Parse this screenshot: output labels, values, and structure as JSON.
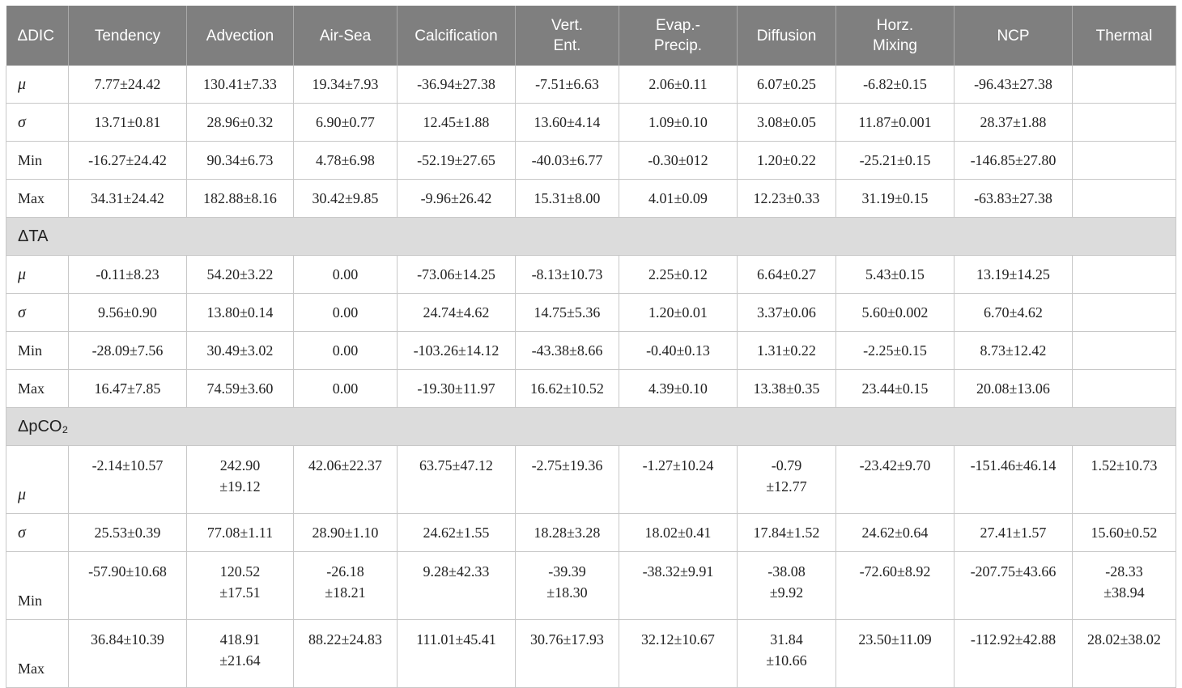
{
  "headers": [
    "ΔDIC",
    "Tendency",
    "Advection",
    "Air-Sea",
    "Calcification",
    "Vert.\nEnt.",
    "Evap.-\nPrecip.",
    "Diffusion",
    "Horz.\nMixing",
    "NCP",
    "Thermal"
  ],
  "sections": [
    {
      "rows": [
        {
          "label": "μ",
          "greek": true,
          "cells": [
            "7.77±24.42",
            "130.41±7.33",
            "19.34±7.93",
            "-36.94±27.38",
            "-7.51±6.63",
            "2.06±0.11",
            "6.07±0.25",
            "-6.82±0.15",
            "-96.43±27.38",
            ""
          ]
        },
        {
          "label": "σ",
          "greek": true,
          "cells": [
            "13.71±0.81",
            "28.96±0.32",
            "6.90±0.77",
            "12.45±1.88",
            "13.60±4.14",
            "1.09±0.10",
            "3.08±0.05",
            "11.87±0.001",
            "28.37±1.88",
            ""
          ]
        },
        {
          "label": "Min",
          "greek": false,
          "cells": [
            "-16.27±24.42",
            "90.34±6.73",
            "4.78±6.98",
            "-52.19±27.65",
            "-40.03±6.77",
            "-0.30±012",
            "1.20±0.22",
            "-25.21±0.15",
            "-146.85±27.80",
            ""
          ]
        },
        {
          "label": "Max",
          "greek": false,
          "cells": [
            "34.31±24.42",
            "182.88±8.16",
            "30.42±9.85",
            "-9.96±26.42",
            "15.31±8.00",
            "4.01±0.09",
            "12.23±0.33",
            "31.19±0.15",
            "-63.83±27.38",
            ""
          ]
        }
      ]
    },
    {
      "title": "ΔTA",
      "rows": [
        {
          "label": "μ",
          "greek": true,
          "cells": [
            "-0.11±8.23",
            "54.20±3.22",
            "0.00",
            "-73.06±14.25",
            "-8.13±10.73",
            "2.25±0.12",
            "6.64±0.27",
            "5.43±0.15",
            "13.19±14.25",
            ""
          ]
        },
        {
          "label": "σ",
          "greek": true,
          "cells": [
            "9.56±0.90",
            "13.80±0.14",
            "0.00",
            "24.74±4.62",
            "14.75±5.36",
            "1.20±0.01",
            "3.37±0.06",
            "5.60±0.002",
            "6.70±4.62",
            ""
          ]
        },
        {
          "label": "Min",
          "greek": false,
          "cells": [
            "-28.09±7.56",
            "30.49±3.02",
            "0.00",
            "-103.26±14.12",
            "-43.38±8.66",
            "-0.40±0.13",
            "1.31±0.22",
            "-2.25±0.15",
            "8.73±12.42",
            ""
          ]
        },
        {
          "label": "Max",
          "greek": false,
          "cells": [
            "16.47±7.85",
            "74.59±3.60",
            "0.00",
            "-19.30±11.97",
            "16.62±10.52",
            "4.39±0.10",
            "13.38±0.35",
            "23.44±0.15",
            "20.08±13.06",
            ""
          ]
        }
      ]
    },
    {
      "title": "ΔpCO₂",
      "rows": [
        {
          "label": "μ",
          "greek": true,
          "tall": true,
          "cells": [
            "-2.14±10.57",
            "242.90\n±19.12",
            "42.06±22.37",
            "63.75±47.12",
            "-2.75±19.36",
            "-1.27±10.24",
            "-0.79\n±12.77",
            "-23.42±9.70",
            "-151.46±46.14",
            "1.52±10.73"
          ]
        },
        {
          "label": "σ",
          "greek": true,
          "cells": [
            "25.53±0.39",
            "77.08±1.11",
            "28.90±1.10",
            "24.62±1.55",
            "18.28±3.28",
            "18.02±0.41",
            "17.84±1.52",
            "24.62±0.64",
            "27.41±1.57",
            "15.60±0.52"
          ]
        },
        {
          "label": "Min",
          "greek": false,
          "tall": true,
          "cells": [
            "-57.90±10.68",
            "120.52\n±17.51",
            "-26.18\n±18.21",
            "9.28±42.33",
            "-39.39\n±18.30",
            "-38.32±9.91",
            "-38.08\n±9.92",
            "-72.60±8.92",
            "-207.75±43.66",
            "-28.33\n±38.94"
          ]
        },
        {
          "label": "Max",
          "greek": false,
          "tall": true,
          "cells": [
            "36.84±10.39",
            "418.91\n±21.64",
            "88.22±24.83",
            "111.01±45.41",
            "30.76±17.93",
            "32.12±10.67",
            "31.84\n±10.66",
            "23.50±11.09",
            "-112.92±42.88",
            "28.02±38.02"
          ]
        }
      ]
    }
  ]
}
